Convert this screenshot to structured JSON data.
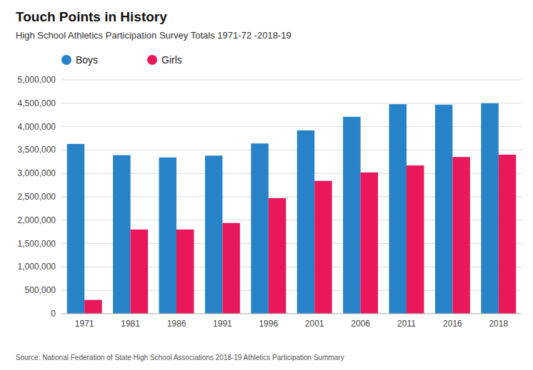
{
  "chart_data": {
    "type": "bar",
    "title": "Touch Points in History",
    "subtitle": "High School Athletics Participation Survey Totals 1971-72 -2018-19",
    "source": "Source: National Federation of State High School Associations 2018-19 Athletics Participation Summary",
    "categories": [
      "1971",
      "1981",
      "1986",
      "1991",
      "1996",
      "2001",
      "2006",
      "2011",
      "2016",
      "2018"
    ],
    "series": [
      {
        "name": "Boys",
        "color": "#2882c8",
        "values": [
          3630000,
          3390000,
          3340000,
          3380000,
          3640000,
          3920000,
          4210000,
          4480000,
          4470000,
          4500000
        ]
      },
      {
        "name": "Girls",
        "color": "#e8185a",
        "values": [
          295000,
          1800000,
          1800000,
          1940000,
          2470000,
          2840000,
          3020000,
          3170000,
          3350000,
          3400000
        ]
      }
    ],
    "ylim": [
      0,
      5000000
    ],
    "yticks": [
      0,
      {
        "value": 500000,
        "label": "500,000"
      },
      {
        "value": 1000000,
        "label": "1,000,000"
      },
      {
        "value": 1500000,
        "label": "1,500,000"
      },
      {
        "value": 2000000,
        "label": "2,000,000"
      },
      {
        "value": 2500000,
        "label": "2,500,000"
      },
      {
        "value": 3000000,
        "label": "3,000,000"
      },
      {
        "value": 3500000,
        "label": "3,500,000"
      },
      {
        "value": 4000000,
        "label": "4,000,000"
      },
      {
        "value": 4500000,
        "label": "4,500,000"
      },
      {
        "value": 5000000,
        "label": "5,000,000"
      }
    ],
    "grid": true,
    "legend": "upper left"
  }
}
